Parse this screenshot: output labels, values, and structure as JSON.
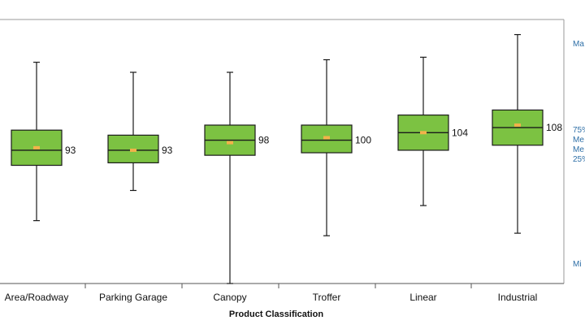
{
  "chart_data": {
    "type": "boxplot",
    "xlabel": "Product Classification",
    "ylabel": "",
    "ylim": [
      40,
      145
    ],
    "grid": false,
    "colors": {
      "box_fill": "#7cc242",
      "box_stroke": "#1a1a1a",
      "mean_marker": "#f2b24a",
      "legend_text": "#2e6fa7"
    },
    "categories": [
      "Area/Roadway",
      "Parking Garage",
      "Canopy",
      "Troffer",
      "Linear",
      "Industrial"
    ],
    "boxes": [
      {
        "category": "Area/Roadway",
        "min": 65,
        "q1": 87,
        "median": 93,
        "mean": 94,
        "q3": 101,
        "max": 128,
        "label": "93"
      },
      {
        "category": "Parking Garage",
        "min": 77,
        "q1": 88,
        "median": 93,
        "mean": 93,
        "q3": 99,
        "max": 124,
        "label": "93"
      },
      {
        "category": "Canopy",
        "min": 40,
        "q1": 91,
        "median": 97,
        "mean": 96,
        "q3": 103,
        "max": 124,
        "label": "98"
      },
      {
        "category": "Troffer",
        "min": 59,
        "q1": 92,
        "median": 97,
        "mean": 98,
        "q3": 103,
        "max": 129,
        "label": "100"
      },
      {
        "category": "Linear",
        "min": 71,
        "q1": 93,
        "median": 100,
        "mean": 100,
        "q3": 107,
        "max": 130,
        "label": "104"
      },
      {
        "category": "Industrial",
        "min": 60,
        "q1": 95,
        "median": 102,
        "mean": 103,
        "q3": 109,
        "max": 139,
        "label": "108"
      }
    ],
    "legend": [
      {
        "text": "Ma",
        "stat": "max"
      },
      {
        "text": "75%",
        "stat": "q3"
      },
      {
        "text": "Me",
        "stat": "mean"
      },
      {
        "text": "Me",
        "stat": "median"
      },
      {
        "text": "25%",
        "stat": "q1"
      },
      {
        "text": "Mi",
        "stat": "min"
      }
    ]
  }
}
